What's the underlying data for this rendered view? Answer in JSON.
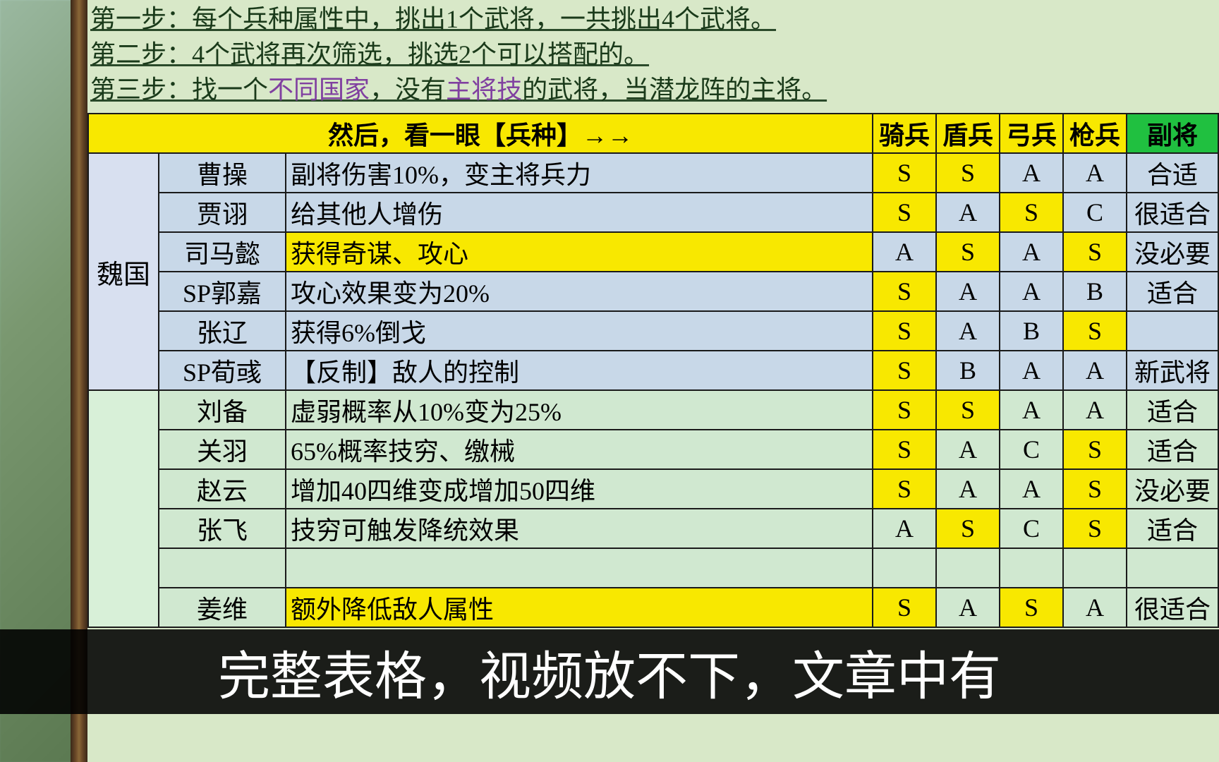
{
  "steps": [
    {
      "prefix": "第一步：",
      "text": "每个兵种属性中，挑出1个武将，一共挑出4个武将。"
    },
    {
      "prefix": "第二步：",
      "text": "4个武将再次筛选，挑选2个可以搭配的。"
    },
    {
      "prefix": "第三步：",
      "text_parts": [
        {
          "t": "找一个",
          "cls": ""
        },
        {
          "t": "不同国家",
          "cls": "purple"
        },
        {
          "t": "，没有",
          "cls": ""
        },
        {
          "t": "主将技",
          "cls": "purple"
        },
        {
          "t": "的武将，当潜龙阵的主将。",
          "cls": ""
        }
      ]
    }
  ],
  "header": {
    "main": "然后，看一眼【兵种】→→",
    "units": [
      "骑兵",
      "盾兵",
      "弓兵",
      "枪兵"
    ],
    "deputy": "副将"
  },
  "factions": [
    {
      "name": "魏国",
      "bgClass": "bg-blue",
      "factionClass": "faction-wei",
      "rows": [
        {
          "name": "曹操",
          "desc": "副将伤害10%，变主将兵力",
          "descHL": false,
          "grades": [
            {
              "v": "S",
              "hl": true
            },
            {
              "v": "S",
              "hl": true
            },
            {
              "v": "A",
              "hl": false
            },
            {
              "v": "A",
              "hl": false
            }
          ],
          "deputy": "合适"
        },
        {
          "name": "贾诩",
          "desc": "给其他人增伤",
          "descHL": false,
          "grades": [
            {
              "v": "S",
              "hl": true
            },
            {
              "v": "A",
              "hl": false
            },
            {
              "v": "S",
              "hl": true
            },
            {
              "v": "C",
              "hl": false
            }
          ],
          "deputy": "很适合"
        },
        {
          "name": "司马懿",
          "desc": "获得奇谋、攻心",
          "descHL": true,
          "grades": [
            {
              "v": "A",
              "hl": false
            },
            {
              "v": "S",
              "hl": true
            },
            {
              "v": "A",
              "hl": false
            },
            {
              "v": "S",
              "hl": true
            }
          ],
          "deputy": "没必要"
        },
        {
          "name": "SP郭嘉",
          "desc": "攻心效果变为20%",
          "descHL": false,
          "grades": [
            {
              "v": "S",
              "hl": true
            },
            {
              "v": "A",
              "hl": false
            },
            {
              "v": "A",
              "hl": false
            },
            {
              "v": "B",
              "hl": false
            }
          ],
          "deputy": "适合"
        },
        {
          "name": "张辽",
          "desc": "获得6%倒戈",
          "descHL": false,
          "grades": [
            {
              "v": "S",
              "hl": true
            },
            {
              "v": "A",
              "hl": false
            },
            {
              "v": "B",
              "hl": false
            },
            {
              "v": "S",
              "hl": true
            }
          ],
          "deputy": ""
        },
        {
          "name": "SP荀彧",
          "desc": "【反制】敌人的控制",
          "descHL": false,
          "grades": [
            {
              "v": "S",
              "hl": true
            },
            {
              "v": "B",
              "hl": false
            },
            {
              "v": "A",
              "hl": false
            },
            {
              "v": "A",
              "hl": false
            }
          ],
          "deputy": "新武将"
        }
      ]
    },
    {
      "name": "",
      "bgClass": "bg-green",
      "factionClass": "faction-shu",
      "rows": [
        {
          "name": "刘备",
          "desc": "虚弱概率从10%变为25%",
          "descHL": false,
          "grades": [
            {
              "v": "S",
              "hl": true
            },
            {
              "v": "S",
              "hl": true
            },
            {
              "v": "A",
              "hl": false
            },
            {
              "v": "A",
              "hl": false
            }
          ],
          "deputy": "适合"
        },
        {
          "name": "关羽",
          "desc": "65%概率技穷、缴械",
          "descHL": false,
          "grades": [
            {
              "v": "S",
              "hl": true
            },
            {
              "v": "A",
              "hl": false
            },
            {
              "v": "C",
              "hl": false
            },
            {
              "v": "S",
              "hl": true
            }
          ],
          "deputy": "适合"
        },
        {
          "name": "赵云",
          "desc": "增加40四维变成增加50四维",
          "descHL": false,
          "grades": [
            {
              "v": "S",
              "hl": true
            },
            {
              "v": "A",
              "hl": false
            },
            {
              "v": "A",
              "hl": false
            },
            {
              "v": "S",
              "hl": true
            }
          ],
          "deputy": "没必要"
        },
        {
          "name": "张飞",
          "desc": "技穷可触发降统效果",
          "descHL": false,
          "grades": [
            {
              "v": "A",
              "hl": false
            },
            {
              "v": "S",
              "hl": true
            },
            {
              "v": "C",
              "hl": false
            },
            {
              "v": "S",
              "hl": true
            }
          ],
          "deputy": "适合"
        },
        {
          "name": "",
          "desc": "",
          "descHL": false,
          "grades": [
            {
              "v": "",
              "hl": false
            },
            {
              "v": "",
              "hl": false
            },
            {
              "v": "",
              "hl": false
            },
            {
              "v": "",
              "hl": false
            }
          ],
          "deputy": ""
        },
        {
          "name": "姜维",
          "desc": "额外降低敌人属性",
          "descHL": true,
          "grades": [
            {
              "v": "S",
              "hl": true
            },
            {
              "v": "A",
              "hl": false
            },
            {
              "v": "S",
              "hl": true
            },
            {
              "v": "A",
              "hl": false
            }
          ],
          "deputy": "很适合"
        }
      ]
    }
  ],
  "subtitle": "完整表格，视频放不下，文章中有"
}
